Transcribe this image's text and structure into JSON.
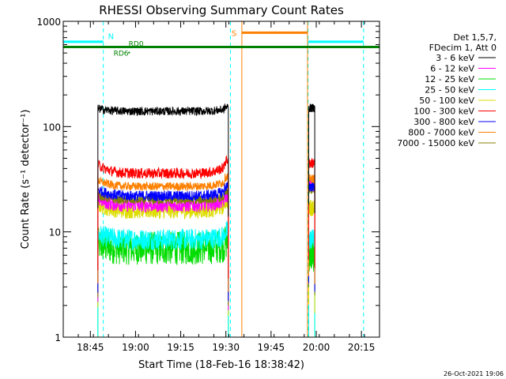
{
  "chart_data": {
    "type": "line",
    "title": "RHESSI Observing Summary Count Rates",
    "xlabel": "Start Time (18-Feb-16 18:38:42)",
    "ylabel": "Count Rate (s⁻¹ detector⁻¹)",
    "x_range_minutes": [
      -2,
      103
    ],
    "x_ticks": [
      {
        "minute": 7,
        "label": "18:45"
      },
      {
        "minute": 22,
        "label": "19:00"
      },
      {
        "minute": 37,
        "label": "19:15"
      },
      {
        "minute": 52,
        "label": "19:30"
      },
      {
        "minute": 67,
        "label": "19:45"
      },
      {
        "minute": 82,
        "label": "20:00"
      },
      {
        "minute": 97,
        "label": "20:15"
      }
    ],
    "y_scale": "log",
    "ylim": [
      1,
      1000
    ],
    "y_ticks": [
      {
        "value": 1,
        "label": "1"
      },
      {
        "value": 10,
        "label": "10"
      },
      {
        "value": 100,
        "label": "100"
      },
      {
        "value": 1000,
        "label": "1000"
      }
    ],
    "legend_header": [
      "Det 1,5,7,",
      "FDecim 1, Att 0"
    ],
    "legend_position": "right",
    "series": [
      {
        "name": "3 - 6 keV",
        "color": "#000000",
        "level1": 140,
        "level2": 150,
        "noise": 0.04,
        "ramp": 0.02
      },
      {
        "name": "6 - 12 keV",
        "color": "#ff00ff",
        "level1": 18,
        "level2": 28,
        "noise": 0.07,
        "ramp": 0.05
      },
      {
        "name": "12 - 25 keV",
        "color": "#00dd00",
        "level1": 7,
        "level2": 6,
        "noise": 0.16,
        "ramp": 0.03
      },
      {
        "name": "25 - 50 keV",
        "color": "#00ffff",
        "level1": 8.5,
        "level2": 8.5,
        "noise": 0.1,
        "ramp": 0.04
      },
      {
        "name": "50 - 100 keV",
        "color": "#dddd00",
        "level1": 16,
        "level2": 17,
        "noise": 0.08,
        "ramp": 0.05
      },
      {
        "name": "100 - 300 keV",
        "color": "#ff0000",
        "level1": 36,
        "level2": 45,
        "noise": 0.05,
        "ramp": 0.07
      },
      {
        "name": "300 - 800 keV",
        "color": "#0000ff",
        "level1": 22,
        "level2": 27,
        "noise": 0.05,
        "ramp": 0.05
      },
      {
        "name": "800 - 7000 keV",
        "color": "#ff8000",
        "level1": 27,
        "level2": 32,
        "noise": 0.04,
        "ramp": 0.05
      },
      {
        "name": "7000 - 15000 keV",
        "color": "#808000",
        "level1": 20,
        "level2": 25,
        "noise": 0.04,
        "ramp": 0.04
      }
    ],
    "segments_minutes": [
      [
        9.5,
        52.8
      ],
      [
        79.5,
        81.5
      ]
    ],
    "night_intervals_minutes": [
      [
        -2,
        11.3
      ],
      [
        79.3,
        97.7
      ]
    ],
    "night_marker_label": "N",
    "saa_interval_minutes": [
      57.3,
      79.1
    ],
    "saa_marker_label": "S",
    "decimation_labels": [
      "RD6",
      "RD0"
    ],
    "decimation_line_value": 570,
    "vertical_markers_minutes": [
      {
        "minute": -2,
        "color": "#00ffff",
        "dash": true
      },
      {
        "minute": 11.3,
        "color": "#00ffff",
        "dash": true
      },
      {
        "minute": 53.5,
        "color": "#00ffff",
        "dash": true
      },
      {
        "minute": 79.3,
        "color": "#00ffff",
        "dash": true
      },
      {
        "minute": 97.7,
        "color": "#00ffff",
        "dash": true
      },
      {
        "minute": 57.3,
        "color": "#ff8000",
        "dash": false
      },
      {
        "minute": 79.1,
        "color": "#ff8000",
        "dash": false
      }
    ],
    "grid": false
  },
  "footer": {
    "timestamp": "26-Oct-2021 19:06"
  }
}
